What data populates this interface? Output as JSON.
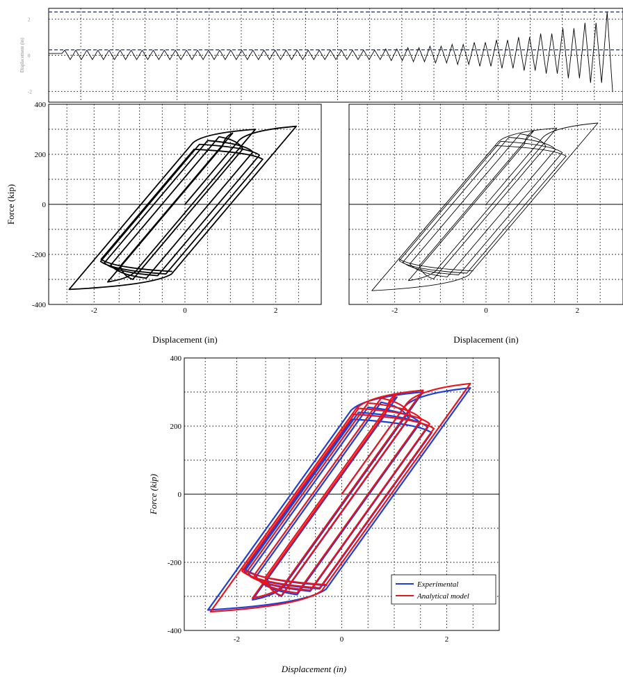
{
  "figure": {
    "colors": {
      "experimental": "#1f3fd6",
      "analytical": "#e8141e",
      "ink": "#000000",
      "reference": "#2b3a9e"
    }
  },
  "chart_data": [
    {
      "id": "history",
      "type": "line",
      "xlabel": "",
      "ylabel": "Displacement (in)",
      "xlim": [
        0,
        50
      ],
      "ylim": [
        -2.6,
        2.6
      ],
      "yticks": [
        -2,
        0,
        2
      ],
      "ytick_labels": [
        "-2",
        "0",
        "2"
      ],
      "grid": true,
      "reference_lines": [
        2.4,
        0.3
      ],
      "series": [
        {
          "amplitudes": [
            0.28,
            0.28,
            0.28,
            0.28,
            0.28,
            0.28,
            0.28,
            0.28,
            0.28,
            0.28,
            0.28,
            0.28,
            0.28,
            0.28,
            0.28,
            0.28,
            0.28,
            0.28,
            0.28,
            0.28,
            0.28,
            0.28,
            0.28,
            0.28,
            0.28,
            0.28,
            0.28,
            0.28,
            0.28,
            0.35,
            0.35,
            0.42,
            0.42,
            0.5,
            0.5,
            0.6,
            0.6,
            0.72,
            0.72,
            0.85,
            0.85,
            1.0,
            1.0,
            1.2,
            1.2,
            1.5,
            1.5,
            1.8,
            1.8,
            2.4
          ],
          "baseline": 0.1
        }
      ]
    },
    {
      "id": "experimental",
      "type": "line",
      "xlabel": "Displacement (in)",
      "ylabel": "Force (kip)",
      "xlim": [
        -3,
        3
      ],
      "ylim": [
        -400,
        400
      ],
      "xticks": [
        -2,
        0,
        2
      ],
      "xtick_labels": [
        "-2",
        "0",
        "2"
      ],
      "yticks": [
        -400,
        -200,
        0,
        200,
        400
      ],
      "ytick_labels": [
        "-400",
        "-200",
        "0",
        "200",
        "400"
      ],
      "grid": true,
      "series": [
        {
          "name": "",
          "loops": [
            [
              2.45,
              312
            ],
            [
              -2.55,
              -340
            ],
            [
              1.55,
              300
            ],
            [
              -1.7,
              -310
            ],
            [
              1.05,
              285
            ],
            [
              -1.15,
              -300
            ],
            [
              0.75,
              270
            ],
            [
              -0.85,
              -295
            ],
            [
              0.5,
              255
            ],
            [
              -0.6,
              -285
            ],
            [
              0.32,
              240
            ],
            [
              -0.42,
              -278
            ],
            [
              0.2,
              220
            ],
            [
              -0.28,
              -268
            ]
          ]
        }
      ]
    },
    {
      "id": "analytical",
      "type": "line",
      "xlabel": "Displacement (in)",
      "ylabel": "",
      "xlim": [
        -3,
        3
      ],
      "ylim": [
        -400,
        400
      ],
      "xticks": [
        -2,
        0,
        2
      ],
      "xtick_labels": [
        "-2",
        "0",
        "2"
      ],
      "yticks": [
        -400,
        -200,
        0,
        200,
        400
      ],
      "grid": true,
      "series": [
        {
          "name": "",
          "loops": [
            [
              2.45,
              325
            ],
            [
              -2.5,
              -345
            ],
            [
              1.55,
              305
            ],
            [
              -1.7,
              -305
            ],
            [
              1.05,
              295
            ],
            [
              -1.15,
              -298
            ],
            [
              0.75,
              282
            ],
            [
              -0.85,
              -290
            ],
            [
              0.5,
              268
            ],
            [
              -0.6,
              -282
            ],
            [
              0.32,
              252
            ],
            [
              -0.42,
              -275
            ],
            [
              0.2,
              235
            ],
            [
              -0.28,
              -266
            ]
          ]
        }
      ]
    },
    {
      "id": "overlay",
      "type": "line",
      "xlabel": "Displacement (in)",
      "ylabel": "Force (kip)",
      "xlim": [
        -3,
        3
      ],
      "ylim": [
        -400,
        400
      ],
      "xticks": [
        -2,
        0,
        2
      ],
      "xtick_labels": [
        "-2",
        "0",
        "2"
      ],
      "yticks": [
        -400,
        -200,
        0,
        200,
        400
      ],
      "ytick_labels": [
        "-400",
        "-200",
        "0",
        "200",
        "400"
      ],
      "grid": true,
      "legend": "bottom-right",
      "series": [
        {
          "name": "Experimental",
          "color": "#1f3fd6",
          "loops": [
            [
              2.45,
              312
            ],
            [
              -2.55,
              -340
            ],
            [
              1.55,
              300
            ],
            [
              -1.7,
              -310
            ],
            [
              1.05,
              285
            ],
            [
              -1.15,
              -300
            ],
            [
              0.75,
              270
            ],
            [
              -0.85,
              -295
            ],
            [
              0.5,
              255
            ],
            [
              -0.6,
              -285
            ],
            [
              0.32,
              240
            ],
            [
              -0.42,
              -278
            ],
            [
              0.2,
              220
            ],
            [
              -0.28,
              -268
            ]
          ]
        },
        {
          "name": "Analytical model",
          "color": "#e8141e",
          "loops": [
            [
              2.45,
              325
            ],
            [
              -2.5,
              -345
            ],
            [
              1.55,
              305
            ],
            [
              -1.7,
              -305
            ],
            [
              1.05,
              295
            ],
            [
              -1.15,
              -298
            ],
            [
              0.75,
              282
            ],
            [
              -0.85,
              -290
            ],
            [
              0.5,
              268
            ],
            [
              -0.6,
              -282
            ],
            [
              0.32,
              252
            ],
            [
              -0.42,
              -275
            ],
            [
              0.2,
              235
            ],
            [
              -0.28,
              -266
            ]
          ]
        }
      ]
    }
  ]
}
